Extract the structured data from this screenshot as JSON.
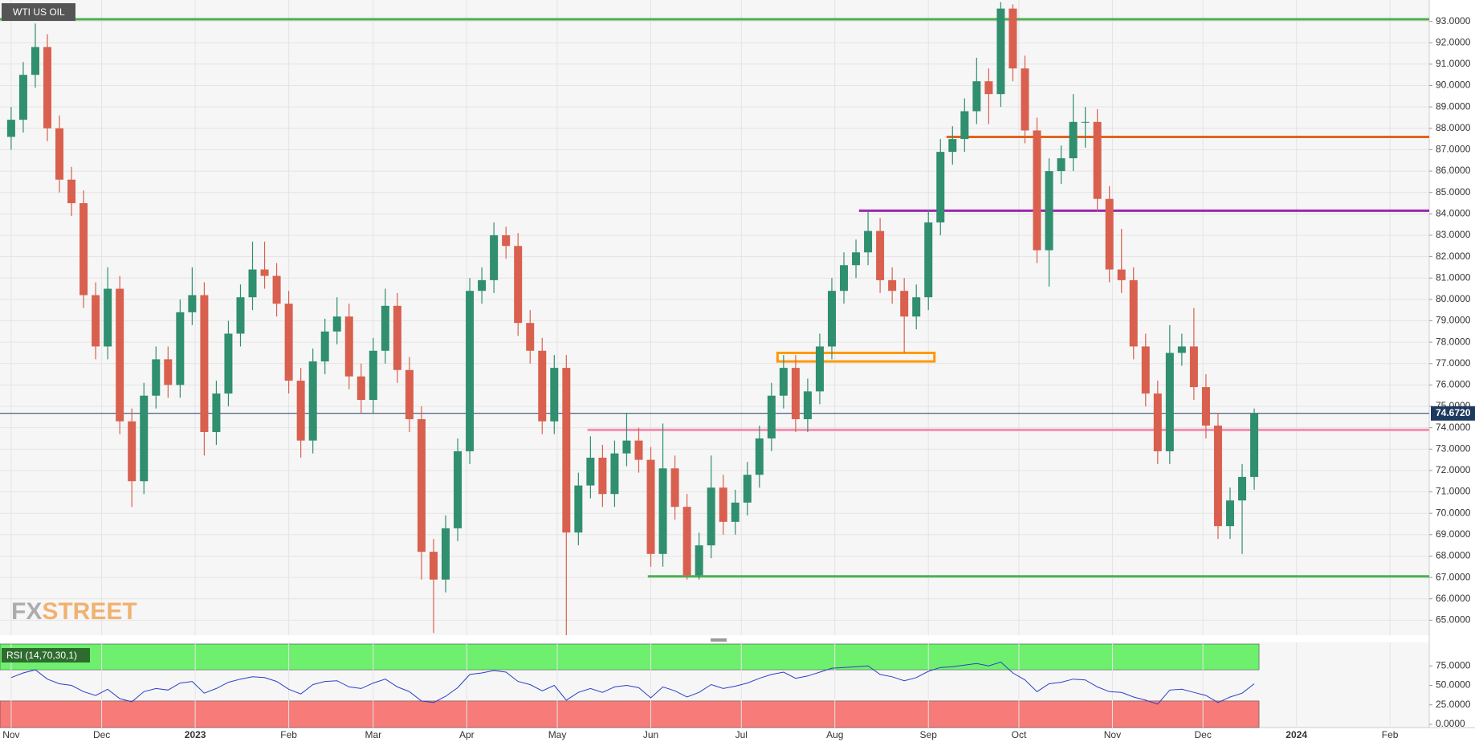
{
  "chart_data": {
    "type": "candlestick",
    "title": "WTI US OIL",
    "watermark": [
      "FX",
      "STREET"
    ],
    "x": [
      0,
      4,
      8,
      12,
      16,
      20,
      24,
      28,
      32,
      36,
      40,
      44,
      48,
      52,
      56,
      60,
      64,
      68,
      72,
      76,
      80,
      84,
      88,
      92,
      96,
      100,
      104,
      108,
      112,
      116,
      120,
      124,
      128,
      132,
      136,
      140,
      144,
      148,
      152,
      156,
      160,
      164,
      168,
      172,
      176,
      180,
      184,
      188,
      192,
      196,
      200,
      204,
      208,
      212,
      216,
      220,
      224,
      228,
      232,
      236,
      240,
      244,
      248,
      252,
      256,
      260,
      264,
      268,
      272,
      276,
      280,
      284,
      288,
      292,
      296,
      300,
      304,
      308,
      312,
      316,
      320,
      324,
      328,
      332,
      336,
      340,
      344,
      348,
      352,
      356,
      360,
      364,
      368,
      372,
      376,
      380,
      384,
      388,
      392,
      396,
      400,
      404,
      408,
      412
    ],
    "xlim": [
      -3.7,
      470
    ],
    "xticks": [
      {
        "value": 0,
        "label": "Nov"
      },
      {
        "value": 30,
        "label": "Dec"
      },
      {
        "value": 61,
        "label": "2023"
      },
      {
        "value": 92,
        "label": "Feb"
      },
      {
        "value": 120,
        "label": "Mar"
      },
      {
        "value": 151,
        "label": "Apr"
      },
      {
        "value": 181,
        "label": "May"
      },
      {
        "value": 212,
        "label": "Jun"
      },
      {
        "value": 242,
        "label": "Jul"
      },
      {
        "value": 273,
        "label": "Aug"
      },
      {
        "value": 304,
        "label": "Sep"
      },
      {
        "value": 334,
        "label": "Oct"
      },
      {
        "value": 365,
        "label": "Nov"
      },
      {
        "value": 395,
        "label": "Dec"
      },
      {
        "value": 426,
        "label": "2024"
      },
      {
        "value": 457,
        "label": "Feb"
      }
    ],
    "ohlc": [
      [
        87.6,
        89.0,
        87.0,
        88.4
      ],
      [
        88.4,
        91.1,
        87.8,
        90.5
      ],
      [
        90.5,
        92.9,
        89.9,
        91.8
      ],
      [
        91.8,
        92.4,
        87.4,
        88.0
      ],
      [
        88.0,
        88.6,
        85.0,
        85.6
      ],
      [
        85.6,
        86.2,
        83.9,
        84.5
      ],
      [
        84.5,
        85.1,
        79.6,
        80.2
      ],
      [
        80.2,
        80.8,
        77.2,
        77.8
      ],
      [
        77.8,
        81.5,
        77.2,
        80.5
      ],
      [
        80.5,
        81.1,
        73.7,
        74.3
      ],
      [
        74.3,
        74.9,
        70.3,
        71.5
      ],
      [
        71.5,
        76.1,
        70.9,
        75.5
      ],
      [
        75.5,
        77.8,
        74.9,
        77.2
      ],
      [
        77.2,
        77.8,
        75.4,
        76.0
      ],
      [
        76.0,
        80.0,
        75.4,
        79.4
      ],
      [
        79.4,
        81.5,
        78.8,
        80.2
      ],
      [
        80.2,
        80.8,
        72.7,
        73.8
      ],
      [
        73.8,
        76.2,
        73.2,
        75.6
      ],
      [
        75.6,
        79.0,
        75.0,
        78.4
      ],
      [
        78.4,
        80.7,
        77.8,
        80.1
      ],
      [
        80.1,
        82.7,
        79.5,
        81.4
      ],
      [
        81.4,
        82.7,
        80.5,
        81.1
      ],
      [
        81.1,
        81.7,
        79.2,
        79.8
      ],
      [
        79.8,
        80.4,
        75.6,
        76.2
      ],
      [
        76.2,
        76.8,
        72.6,
        73.4
      ],
      [
        73.4,
        77.7,
        72.8,
        77.1
      ],
      [
        77.1,
        79.1,
        76.5,
        78.5
      ],
      [
        78.5,
        80.1,
        77.9,
        79.2
      ],
      [
        79.2,
        79.8,
        75.8,
        76.4
      ],
      [
        76.4,
        77.0,
        74.7,
        75.3
      ],
      [
        75.3,
        78.2,
        74.7,
        77.6
      ],
      [
        77.6,
        80.5,
        77.0,
        79.7
      ],
      [
        79.7,
        80.3,
        76.1,
        76.7
      ],
      [
        76.7,
        77.3,
        73.8,
        74.4
      ],
      [
        74.4,
        75.0,
        66.9,
        68.2
      ],
      [
        68.2,
        68.8,
        64.4,
        66.9
      ],
      [
        66.9,
        69.9,
        66.3,
        69.3
      ],
      [
        69.3,
        73.5,
        68.7,
        72.9
      ],
      [
        72.9,
        81.0,
        72.3,
        80.4
      ],
      [
        80.4,
        81.5,
        79.8,
        80.9
      ],
      [
        80.9,
        83.6,
        80.3,
        83.0
      ],
      [
        83.0,
        83.4,
        81.9,
        82.5
      ],
      [
        82.5,
        83.1,
        78.3,
        78.9
      ],
      [
        78.9,
        79.5,
        77.0,
        77.6
      ],
      [
        77.6,
        78.2,
        73.7,
        74.3
      ],
      [
        74.3,
        77.4,
        73.7,
        76.8
      ],
      [
        76.8,
        77.4,
        64.3,
        69.1
      ],
      [
        69.1,
        71.9,
        68.5,
        71.3
      ],
      [
        71.3,
        73.6,
        70.7,
        72.6
      ],
      [
        72.6,
        73.2,
        70.3,
        70.9
      ],
      [
        70.9,
        73.4,
        70.3,
        72.8
      ],
      [
        72.8,
        74.7,
        72.2,
        73.4
      ],
      [
        73.4,
        74.0,
        71.9,
        72.5
      ],
      [
        72.5,
        73.1,
        67.5,
        68.1
      ],
      [
        68.1,
        74.2,
        67.5,
        72.1
      ],
      [
        72.1,
        72.7,
        69.7,
        70.3
      ],
      [
        70.3,
        70.9,
        66.9,
        67.1
      ],
      [
        67.1,
        69.1,
        66.9,
        68.5
      ],
      [
        68.5,
        72.7,
        67.9,
        71.2
      ],
      [
        71.2,
        71.8,
        69.0,
        69.6
      ],
      [
        69.6,
        71.1,
        69.0,
        70.5
      ],
      [
        70.5,
        72.4,
        69.9,
        71.8
      ],
      [
        71.8,
        74.1,
        71.2,
        73.5
      ],
      [
        73.5,
        76.1,
        72.9,
        75.5
      ],
      [
        75.5,
        77.4,
        74.9,
        76.8
      ],
      [
        76.8,
        77.4,
        73.8,
        74.4
      ],
      [
        74.4,
        76.3,
        73.8,
        75.7
      ],
      [
        75.7,
        78.4,
        75.1,
        77.8
      ],
      [
        77.8,
        81.0,
        77.2,
        80.4
      ],
      [
        80.4,
        82.2,
        79.8,
        81.6
      ],
      [
        81.6,
        82.8,
        81.0,
        82.2
      ],
      [
        82.2,
        84.1,
        81.6,
        83.2
      ],
      [
        83.2,
        83.8,
        80.3,
        80.9
      ],
      [
        80.9,
        81.5,
        79.8,
        80.4
      ],
      [
        80.4,
        81.0,
        77.5,
        79.2
      ],
      [
        79.2,
        80.7,
        78.6,
        80.1
      ],
      [
        80.1,
        84.2,
        79.5,
        83.6
      ],
      [
        83.6,
        87.5,
        83.0,
        86.9
      ],
      [
        86.9,
        88.1,
        86.3,
        87.5
      ],
      [
        87.5,
        89.4,
        86.9,
        88.8
      ],
      [
        88.8,
        91.3,
        88.2,
        90.2
      ],
      [
        90.2,
        90.8,
        88.2,
        89.6
      ],
      [
        89.6,
        93.9,
        89.0,
        93.6
      ],
      [
        93.6,
        93.8,
        90.2,
        90.8
      ],
      [
        90.8,
        91.4,
        87.3,
        87.9
      ],
      [
        87.9,
        88.5,
        81.7,
        82.3
      ],
      [
        82.3,
        86.6,
        80.6,
        86.0
      ],
      [
        86.0,
        87.2,
        85.4,
        86.6
      ],
      [
        86.6,
        89.6,
        86.0,
        88.3
      ],
      [
        88.3,
        89.0,
        87.1,
        88.3
      ],
      [
        88.3,
        88.9,
        84.1,
        84.7
      ],
      [
        84.7,
        85.3,
        80.8,
        81.4
      ],
      [
        81.4,
        83.3,
        80.3,
        80.9
      ],
      [
        80.9,
        81.5,
        77.2,
        77.8
      ],
      [
        77.8,
        78.4,
        75.0,
        75.6
      ],
      [
        75.6,
        76.2,
        72.3,
        72.9
      ],
      [
        72.9,
        78.8,
        72.3,
        77.5
      ],
      [
        77.5,
        78.4,
        76.9,
        77.8
      ],
      [
        77.8,
        79.6,
        75.3,
        75.9
      ],
      [
        75.9,
        76.5,
        73.5,
        74.1
      ],
      [
        74.1,
        74.7,
        68.8,
        69.4
      ],
      [
        69.4,
        71.2,
        68.8,
        70.6
      ],
      [
        70.6,
        72.3,
        68.1,
        71.7
      ],
      [
        71.7,
        74.9,
        71.1,
        74.67
      ]
    ],
    "up_color": "#2f8f6f",
    "down_color": "#d9604e",
    "ylim": [
      64.3,
      94.0
    ],
    "yticks": [
      {
        "value": 65,
        "label": "65.0000"
      },
      {
        "value": 66,
        "label": "66.0000"
      },
      {
        "value": 67,
        "label": "67.0000"
      },
      {
        "value": 68,
        "label": "68.0000"
      },
      {
        "value": 69,
        "label": "69.0000"
      },
      {
        "value": 70,
        "label": "70.0000"
      },
      {
        "value": 71,
        "label": "71.0000"
      },
      {
        "value": 72,
        "label": "72.0000"
      },
      {
        "value": 73,
        "label": "73.0000"
      },
      {
        "value": 74,
        "label": "74.0000"
      },
      {
        "value": 75,
        "label": "75.0000"
      },
      {
        "value": 76,
        "label": "76.0000"
      },
      {
        "value": 77,
        "label": "77.0000"
      },
      {
        "value": 78,
        "label": "78.0000"
      },
      {
        "value": 79,
        "label": "79.0000"
      },
      {
        "value": 80,
        "label": "80.0000"
      },
      {
        "value": 81,
        "label": "81.0000"
      },
      {
        "value": 82,
        "label": "82.0000"
      },
      {
        "value": 83,
        "label": "83.0000"
      },
      {
        "value": 84,
        "label": "84.0000"
      },
      {
        "value": 85,
        "label": "85.0000"
      },
      {
        "value": 86,
        "label": "86.0000"
      },
      {
        "value": 87,
        "label": "87.0000"
      },
      {
        "value": 88,
        "label": "88.0000"
      },
      {
        "value": 89,
        "label": "89.0000"
      },
      {
        "value": 90,
        "label": "90.0000"
      },
      {
        "value": 91,
        "label": "91.0000"
      },
      {
        "value": 92,
        "label": "92.0000"
      },
      {
        "value": 93,
        "label": "93.0000"
      }
    ],
    "grid": true,
    "price_line": {
      "value": 74.672,
      "label": "74.6720",
      "color": "#1e3a5f"
    },
    "levels": [
      {
        "value": 93.1,
        "from": -3.7,
        "color": "#4caf50"
      },
      {
        "value": 87.6,
        "from": 310,
        "color": "#e0641e"
      },
      {
        "value": 84.15,
        "from": 281,
        "color": "#9c27b0"
      },
      {
        "value": 73.9,
        "from": 191,
        "color": "#f48fb1"
      },
      {
        "value": 67.05,
        "from": 211,
        "color": "#4caf50"
      }
    ],
    "zone": {
      "x": [
        254,
        306
      ],
      "y": [
        77.1,
        77.5
      ],
      "color": "#ff9800"
    },
    "rsi": {
      "name": "RSI (14,70,30,1)",
      "color": "#2a3fc7",
      "overbought": 70,
      "oversold": 30,
      "ylim": [
        -4.1,
        105.1
      ],
      "yticks": [
        {
          "value": 0,
          "label": "0.0000"
        },
        {
          "value": 25,
          "label": "25.0000"
        },
        {
          "value": 50,
          "label": "50.0000"
        },
        {
          "value": 75,
          "label": "75.0000"
        }
      ],
      "values": [
        60,
        66,
        70,
        58,
        52,
        50,
        42,
        37,
        45,
        33,
        29,
        42,
        46,
        44,
        53,
        55,
        40,
        46,
        54,
        58,
        61,
        60,
        55,
        45,
        39,
        51,
        55,
        56,
        48,
        46,
        53,
        58,
        48,
        42,
        30,
        28,
        36,
        47,
        64,
        66,
        69,
        67,
        55,
        51,
        43,
        50,
        31,
        41,
        46,
        41,
        48,
        50,
        47,
        34,
        48,
        43,
        35,
        41,
        51,
        46,
        49,
        53,
        59,
        64,
        67,
        59,
        62,
        67,
        72,
        73,
        74,
        75,
        64,
        61,
        56,
        60,
        68,
        73,
        74,
        76,
        78,
        75,
        80,
        66,
        57,
        42,
        52,
        54,
        58,
        57,
        48,
        42,
        41,
        35,
        31,
        26,
        44,
        45,
        41,
        37,
        28,
        35,
        40,
        52
      ]
    }
  }
}
